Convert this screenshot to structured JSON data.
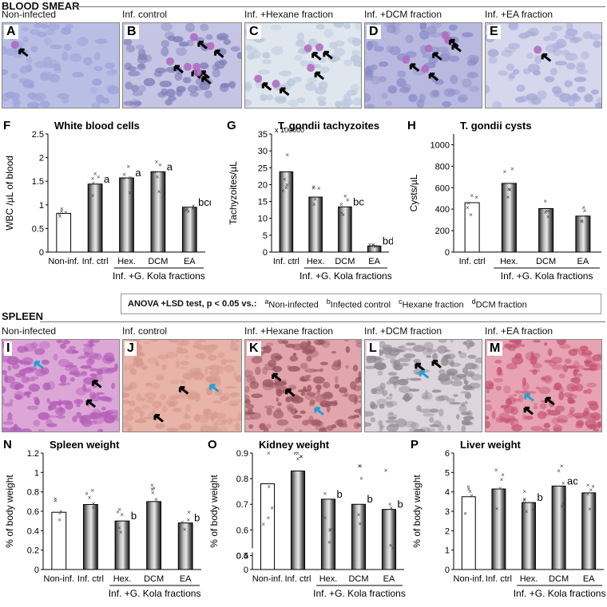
{
  "sections": {
    "blood_smear": "BLOOD SMEAR",
    "spleen": "SPLEEN"
  },
  "blood_tiles": [
    {
      "letter": "A",
      "caption": "Non-infected",
      "bg": "#b9bfe4",
      "cell": "#9aa2d8",
      "arrows": 1
    },
    {
      "letter": "B",
      "caption": "Inf. control",
      "bg": "#c6c4e4",
      "cell": "#7f7fb8",
      "arrows": 6
    },
    {
      "letter": "C",
      "caption": "Inf. +Hexane fraction",
      "bg": "#dfe6ee",
      "cell": "#b8c6dc",
      "arrows": 5
    },
    {
      "letter": "D",
      "caption": "Inf. +DCM fraction",
      "bg": "#b9b9e0",
      "cell": "#8a8cc6",
      "arrows": 5
    },
    {
      "letter": "E",
      "caption": "Inf. +EA fraction",
      "bg": "#d6d6ec",
      "cell": "#a5a8d6",
      "arrows": 1
    }
  ],
  "spleen_tiles": [
    {
      "letter": "I",
      "caption": "Non-infected",
      "bg": "#dca7d6",
      "cell": "#b35cb8"
    },
    {
      "letter": "J",
      "caption": "Inf. control",
      "bg": "#e8b3a8",
      "cell": "#d79a90"
    },
    {
      "letter": "K",
      "caption": "Inf. +Hexane fraction",
      "bg": "#e2a5ac",
      "cell": "#9a5560"
    },
    {
      "letter": "L",
      "caption": "Inf. +DCM fraction",
      "bg": "#ddd4dc",
      "cell": "#8e8890"
    },
    {
      "letter": "M",
      "caption": "Inf. +EA fraction",
      "bg": "#e7a2b4",
      "cell": "#c45470"
    }
  ],
  "anova": {
    "prefix": "ANOVA +LSD test, p < 0.05 vs.:",
    "items": [
      {
        "sup": "a",
        "label": "Non-infected"
      },
      {
        "sup": "b",
        "label": "Infected control"
      },
      {
        "sup": "c",
        "label": "Hexane fraction"
      },
      {
        "sup": "d",
        "label": "DCM fraction"
      }
    ]
  },
  "group_label": "Inf. +G. Kola fractions",
  "chart_data": [
    {
      "id": "F",
      "type": "bar",
      "title": "White blood cells",
      "ylabel": "WBC /µL of blood",
      "categories": [
        "Non-inf.",
        "Inf. ctrl",
        "Hex.",
        "DCM",
        "EA"
      ],
      "values": [
        0.82,
        1.44,
        1.57,
        1.7,
        0.95
      ],
      "ylim": [
        0,
        2.5
      ],
      "yticks": [
        "0",
        "0.5",
        "1",
        "1.5",
        "2",
        "2.5"
      ],
      "ytick_values": [
        0,
        0.5,
        1,
        1.5,
        2,
        2.5
      ],
      "letters": [
        "",
        "a",
        "a",
        "a",
        "bcd"
      ]
    },
    {
      "id": "G",
      "type": "bar",
      "title": "T. gondii tachyzoites",
      "ylabel": "Tachyzoites/µL",
      "yscale_note": "x 100000",
      "categories": [
        "Inf. ctrl",
        "Hex.",
        "DCM",
        "EA"
      ],
      "values": [
        23.8,
        16.3,
        13.4,
        1.8
      ],
      "ylim": [
        0,
        35
      ],
      "yticks": [
        "0",
        "5",
        "10",
        "15",
        "20",
        "25",
        "30",
        "35"
      ],
      "ytick_values": [
        0,
        5,
        10,
        15,
        20,
        25,
        30,
        35
      ],
      "letters": [
        "",
        "",
        "bc",
        "bd"
      ]
    },
    {
      "id": "H",
      "type": "bar",
      "title": "T. gondii cysts",
      "ylabel": "Cysts/µL",
      "categories": [
        "Inf. ctrl",
        "Hex.",
        "DCM",
        "EA"
      ],
      "values": [
        460,
        640,
        405,
        335
      ],
      "ylim": [
        0,
        1100
      ],
      "yticks": [
        "0",
        "200",
        "400",
        "600",
        "800",
        "1000"
      ],
      "ytick_values": [
        0,
        200,
        400,
        600,
        800,
        1000
      ],
      "letters": [
        "",
        "",
        "",
        ""
      ]
    },
    {
      "id": "N",
      "type": "bar",
      "title": "Spleen weight",
      "ylabel": "% of body weight",
      "categories": [
        "Non-inf.",
        "Inf. ctrl",
        "Hex.",
        "DCM",
        "EA"
      ],
      "values": [
        0.59,
        0.67,
        0.5,
        0.7,
        0.48
      ],
      "ylim": [
        0,
        1.2
      ],
      "yticks": [
        "0",
        "0.2",
        "0.4",
        "0.6",
        "0.8",
        "1",
        "1.2"
      ],
      "ytick_values": [
        0,
        0.2,
        0.4,
        0.6,
        0.8,
        1,
        1.2
      ],
      "letters": [
        "",
        "",
        "b",
        "",
        "b"
      ]
    },
    {
      "id": "O",
      "type": "bar",
      "title": "Kidney weight",
      "ylabel": "% of body weight",
      "categories": [
        "Non-inf.",
        "Inf. ctrl",
        "Hex.",
        "DCM",
        "EA"
      ],
      "values": [
        0.78,
        0.83,
        0.72,
        0.7,
        0.68
      ],
      "ylim": [
        0,
        0.9
      ],
      "axis_break": [
        0.4,
        0.5
      ],
      "yticks": [
        "0",
        "0.4",
        "0.5",
        "0.6",
        "0.7",
        "0.8",
        "0.9"
      ],
      "ytick_values": [
        0,
        0.4,
        0.5,
        0.6,
        0.7,
        0.8,
        0.9
      ],
      "letters": [
        "",
        "",
        "b",
        "b",
        "b"
      ]
    },
    {
      "id": "P",
      "type": "bar",
      "title": "Liver weight",
      "ylabel": "% of body weight",
      "categories": [
        "Non-inf.",
        "Inf. ctrl",
        "Hex.",
        "DCM",
        "EA"
      ],
      "values": [
        3.75,
        4.15,
        3.45,
        4.3,
        3.95
      ],
      "ylim": [
        0,
        6
      ],
      "yticks": [
        "0",
        "1",
        "2",
        "3",
        "4",
        "5",
        "6"
      ],
      "ytick_values": [
        0,
        1,
        2,
        3,
        4,
        5,
        6
      ],
      "letters": [
        "",
        "",
        "b",
        "ac",
        ""
      ]
    }
  ]
}
